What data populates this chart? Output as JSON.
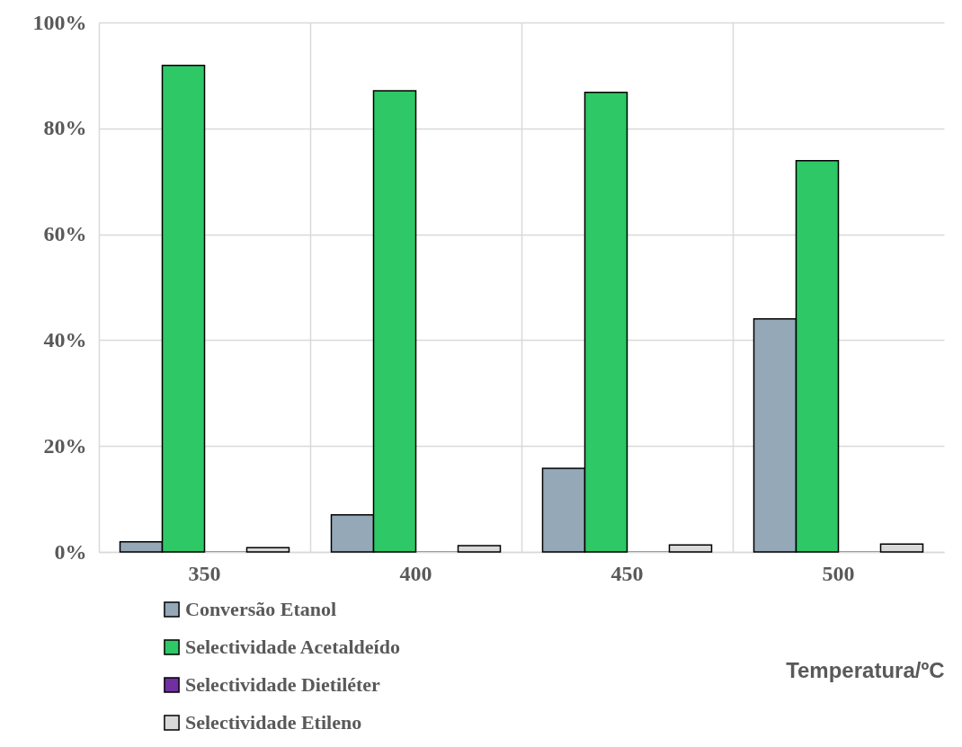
{
  "chart_data": {
    "type": "bar",
    "categories": [
      "350",
      "400",
      "450",
      "500"
    ],
    "xlabel": "Temperatura/ºC",
    "series": [
      {
        "name": "Conversão Etanol",
        "color": "#94a8b8",
        "values": [
          1.9,
          7.0,
          15.8,
          44.0
        ]
      },
      {
        "name": "Selectividade Acetaldeído",
        "color": "#2ec866",
        "values": [
          91.9,
          87.1,
          86.8,
          73.9
        ]
      },
      {
        "name": "Selectividade Dietiléter",
        "color": "#7030a0",
        "values": [
          0.1,
          0.1,
          0.1,
          0.1
        ]
      },
      {
        "name": "Selectividade Etileno",
        "color": "#d9d9d9",
        "values": [
          0.8,
          1.2,
          1.3,
          1.5
        ]
      }
    ],
    "ylim": [
      0,
      100
    ],
    "yticks": [
      {
        "value": 0,
        "label": "0%"
      },
      {
        "value": 20,
        "label": "20%"
      },
      {
        "value": 40,
        "label": "40%"
      },
      {
        "value": 60,
        "label": "60%"
      },
      {
        "value": 80,
        "label": "80%"
      },
      {
        "value": 100,
        "label": "100%"
      }
    ],
    "grid": true,
    "legend": "bottom"
  }
}
